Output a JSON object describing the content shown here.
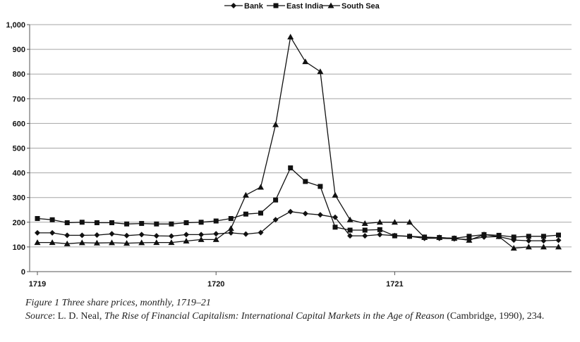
{
  "chart_data": {
    "type": "line",
    "title": "",
    "xlabel": "",
    "ylabel": "",
    "legend_position": "top-center",
    "grid": true,
    "ylim": [
      0,
      1000
    ],
    "y_ticks": [
      "0",
      "100",
      "200",
      "300",
      "400",
      "500",
      "600",
      "700",
      "800",
      "900",
      "1,000"
    ],
    "x_tick_labels": [
      {
        "label": "1719",
        "index": 0
      },
      {
        "label": "1720",
        "index": 12
      },
      {
        "label": "1721",
        "index": 24
      }
    ],
    "series": [
      {
        "name": "Bank",
        "marker": "diamond",
        "values": [
          157,
          157,
          147,
          147,
          148,
          153,
          146,
          150,
          145,
          144,
          150,
          150,
          153,
          157,
          152,
          158,
          210,
          243,
          235,
          230,
          220,
          145,
          145,
          150,
          146,
          143,
          135,
          135,
          133,
          130,
          140,
          142,
          128,
          125,
          125,
          127
        ]
      },
      {
        "name": "East India",
        "marker": "square",
        "values": [
          215,
          210,
          198,
          200,
          198,
          198,
          193,
          195,
          193,
          193,
          198,
          200,
          205,
          215,
          233,
          237,
          290,
          420,
          365,
          345,
          180,
          168,
          168,
          170,
          145,
          143,
          140,
          138,
          135,
          143,
          150,
          147,
          140,
          143,
          143,
          148
        ]
      },
      {
        "name": "South Sea",
        "marker": "triangle",
        "values": [
          118,
          118,
          113,
          117,
          116,
          117,
          115,
          117,
          118,
          118,
          124,
          130,
          130,
          175,
          310,
          342,
          595,
          950,
          850,
          810,
          310,
          210,
          195,
          200,
          200,
          200,
          138,
          138,
          135,
          127,
          150,
          142,
          95,
          100,
          100,
          100
        ]
      }
    ]
  },
  "caption": {
    "figure_label": "Figure 1 Three share prices, monthly, 1719–21",
    "source_prefix": "Source",
    "source_colon": ": L. D. Neal, ",
    "source_title": "The Rise of Financial Capitalism: International Capital Markets in the Age of Reason",
    "source_suffix": " (Cambridge, 1990), 234."
  }
}
